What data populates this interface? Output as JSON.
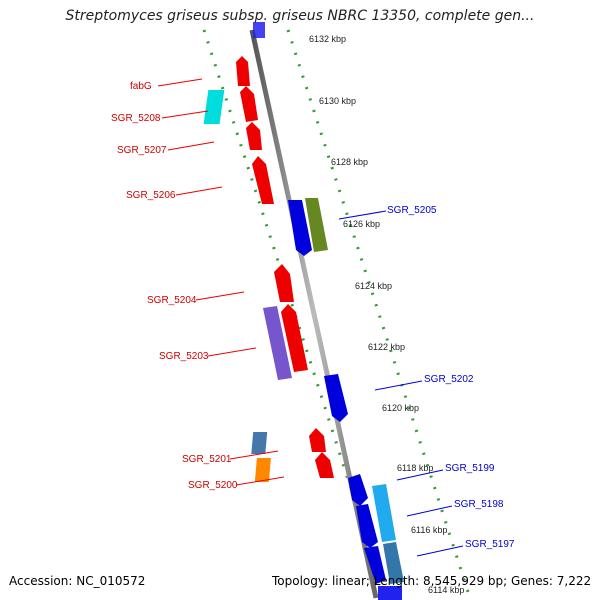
{
  "title": "Streptomyces griseus subsp. griseus NBRC 13350, complete gen...",
  "footer": {
    "accession": "Accession: NC_010572",
    "summary": "Topology: linear; Length: 8,545,929 bp; Genes: 7,222"
  },
  "scale_labels": [
    "6132 kbp",
    "6130 kbp",
    "6128 kbp",
    "6126 kbp",
    "6124 kbp",
    "6122 kbp",
    "6120 kbp",
    "6118 kbp",
    "6116 kbp",
    "6114 kbp"
  ],
  "genes_reverse": [
    {
      "label": "fabG",
      "color": "#ee0000"
    },
    {
      "label": "SGR_5208",
      "color": "#ee0000"
    },
    {
      "label": "SGR_5207",
      "color": "#ee0000"
    },
    {
      "label": "SGR_5206",
      "color": "#ee0000"
    },
    {
      "label": "SGR_5204",
      "color": "#ee0000"
    },
    {
      "label": "SGR_5203",
      "color": "#ee0000"
    },
    {
      "label": "SGR_5201",
      "color": "#ee0000"
    },
    {
      "label": "SGR_5200",
      "color": "#ee0000"
    }
  ],
  "genes_forward": [
    {
      "label": "SGR_5205",
      "color": "#0000dd"
    },
    {
      "label": "SGR_5202",
      "color": "#0000dd"
    },
    {
      "label": "SGR_5199",
      "color": "#0000dd"
    },
    {
      "label": "SGR_5198",
      "color": "#0000dd"
    },
    {
      "label": "SGR_5197",
      "color": "#0000dd"
    }
  ],
  "colors": {
    "reverse_strand": "#ee0000",
    "forward_strand": "#0000dd",
    "reverse_label": "#cc0000",
    "forward_label": "#0000cc",
    "backbone": "#888888",
    "guide_dots": "#339933",
    "cyan_feature": "#00dddd",
    "olive_feature": "#668822",
    "purple_feature": "#7755cc",
    "steel_feature": "#4477aa",
    "orange_feature": "#ff8800",
    "light_blue_feature": "#22aaee"
  }
}
